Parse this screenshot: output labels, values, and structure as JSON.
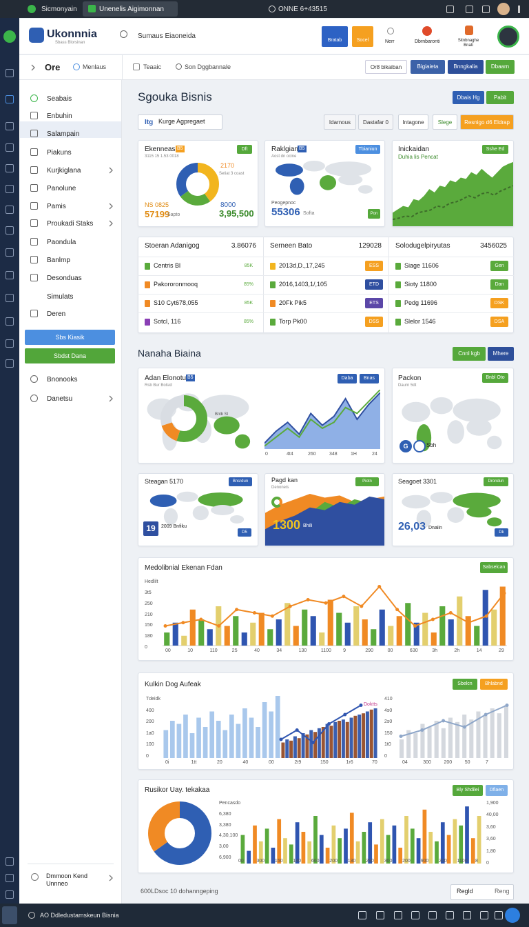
{
  "browser": {
    "tabs": [
      "Sicmonyain",
      "Unenelis Aigimonnan"
    ],
    "address": "ONNE 6+43515"
  },
  "header": {
    "logo": "Ukonnnia",
    "logo_sub": "Sbass Blorsinan",
    "search": "Sumaus Eiaoneida",
    "actions": [
      "Bratab",
      "Socel",
      "Nerr",
      "Dbrnbaronti",
      "Sitnbnaghe Bnati"
    ]
  },
  "toolbar": {
    "back": "Ore",
    "menu": "Menlaus",
    "tabs": [
      "Teaaic",
      "Son Dggbannale"
    ],
    "buttons": [
      "Or8 bikaiban",
      "Bigiaieta",
      "Bnngkalia",
      "Dbaarn"
    ]
  },
  "sidebar": {
    "items": [
      "Seabais",
      "Enbuhin",
      "Salampain",
      "Piakuns",
      "Kurjkiglana",
      "Panolune",
      "Pamis",
      "Proukadi Staks",
      "Paondula",
      "Banlmp",
      "Desonduas",
      "Simulats",
      "Deren"
    ],
    "active": [
      "Sbs Kiasik",
      "Sbdst Dana"
    ],
    "more": [
      "Bnonooks",
      "Danetsu"
    ],
    "footer": [
      "Dmmoon Kend",
      "Unnneo"
    ]
  },
  "page": {
    "title": "Sgouka Bisnis",
    "title_buttons": [
      "Dbais Hg",
      "Pabit"
    ],
    "search_tag": "Itg",
    "search": "Kurge Agpregaet",
    "filters": [
      "Idarnous",
      "Dastafar 0",
      "Intagone",
      "Slege",
      "Resnigo d6 Eldrap"
    ]
  },
  "kpis": [
    {
      "title": "Ekenneas",
      "badge": "Dft",
      "tag": "B5",
      "sub": "3115 15 1.53 0018",
      "labels": [
        "2170",
        "Setiat 3 coast"
      ],
      "donut": {
        "values": [
          40,
          25,
          35
        ],
        "colors": [
          "#f2b51e",
          "#5aaa3c",
          "#2f5fb3"
        ]
      },
      "stats": [
        "NS 0825",
        "8000"
      ],
      "big": [
        "57199",
        "3,95,500"
      ],
      "unit": "Sapto"
    },
    {
      "title": "Raklgians",
      "tag": "B5",
      "badge": "Tbianiun",
      "sub": "Aost dn ocine",
      "stat": "Peogepnoc",
      "big": "55306",
      "unit": "Softa",
      "chip": "Pon"
    },
    {
      "title": "Inickaidan",
      "sub": "Duhia lis Pencat",
      "badge": "Sshe Ed",
      "area": {
        "values": [
          20,
          25,
          30,
          28,
          40,
          38,
          45,
          55,
          50,
          60,
          58,
          68,
          65,
          72,
          70,
          80,
          76,
          85,
          78,
          72,
          80,
          88,
          92,
          95
        ],
        "color": "#5aaa3c",
        "ylim": [
          0,
          100
        ]
      },
      "trend": {
        "values": [
          10,
          12,
          15,
          14,
          20,
          22,
          24,
          30,
          28,
          34,
          36,
          40,
          45,
          42,
          48,
          50,
          46,
          52,
          56,
          60
        ],
        "color": "#3d6b2a",
        "ylim": [
          0,
          100
        ]
      }
    }
  ],
  "table": {
    "columns": [
      {
        "title": "Stoeran Adanigog",
        "total": "3.86076",
        "rows": [
          "Centris Bl",
          "Pakororonmooq",
          "S10 Cyt678,055",
          "Sotcl, 116"
        ],
        "badges": [
          "85K",
          "85%",
          "85K",
          "85%"
        ],
        "marker_colors": [
          "#5aaa3c",
          "#f08a24",
          "#f08a24",
          "#8a3fb5"
        ],
        "badge_colors": [
          "#ffffff",
          "#ffffff",
          "#ffffff",
          "#ffffff"
        ],
        "badge_text": "#5aaa3c"
      },
      {
        "title": "Serneen Bato",
        "total": "129028",
        "rows": [
          "2013d,D.,17,245",
          "2016,1403,1/,105",
          "20Fk Pik5",
          "Torp Pk00"
        ],
        "badges": [
          "ESS",
          "ETD",
          "ETS",
          "DSS"
        ],
        "marker_colors": [
          "#f2b51e",
          "#5aaa3c",
          "#f08a24",
          "#5aaa3c"
        ],
        "badge_colors": [
          "#f5a020",
          "#2f4fa0",
          "#5b47a8",
          "#f5a020"
        ],
        "badge_text": "#ffffff"
      },
      {
        "title": "Solodugelpiryutas",
        "total": "3456025",
        "rows": [
          "Siage 11606",
          "Sioty 11800",
          "Pedg 11696",
          "Slelor 1546"
        ],
        "badges": [
          "Gen",
          "Dan",
          "DSK",
          "DSA"
        ],
        "marker_colors": [
          "#5aaa3c",
          "#5aaa3c",
          "#5aaa3c",
          "#5aaa3c"
        ],
        "badge_colors": [
          "#5aaa3c",
          "#5aaa3c",
          "#f5a020",
          "#f5a020"
        ],
        "badge_text": "#ffffff"
      }
    ]
  },
  "section2": {
    "title": "Nanaha Biaina",
    "buttons": [
      "Cnnl kgb",
      "Mhere"
    ],
    "card_a": {
      "title": "Adan Elonotun",
      "tag": "B5",
      "sub": "Rsb Bur Bolsid",
      "buttons": [
        "Daba",
        "Bnas"
      ],
      "donut": {
        "values": [
          55,
          15,
          30
        ],
        "colors": [
          "#5aaa3c",
          "#f08a24",
          "#d9dde3"
        ]
      },
      "donut_label": "Bnlb Sl",
      "area": {
        "values": [
          10,
          30,
          45,
          25,
          60,
          40,
          55,
          85,
          50,
          75,
          95
        ],
        "color": "#2f4fa0",
        "ylim": [
          0,
          100
        ]
      },
      "area2": {
        "values": [
          5,
          20,
          35,
          20,
          50,
          35,
          45,
          70,
          60,
          80,
          100
        ],
        "color": "#5aaa3c",
        "ylim": [
          0,
          100
        ]
      },
      "x_labels": [
        "0",
        "4t4",
        "260",
        "348",
        "1H",
        "24"
      ]
    },
    "card_b": {
      "title": "Packon",
      "badge": "Bnbl Oto",
      "sub": "Daurn 5dt",
      "chip": "G",
      "label": "Sbh"
    },
    "small_cards": [
      {
        "title": "Steagan 5170",
        "badge": "Bnsrdun",
        "num": "19",
        "label": "2009 Bnfiku",
        "chip": "D5"
      },
      {
        "title": "Pagd kan",
        "sub": "Denoneis",
        "badge": "Piotn",
        "big": "1300",
        "label": "Bhili",
        "area": {
          "values": [
            30,
            45,
            55,
            70,
            65,
            80,
            75,
            90,
            85
          ],
          "color": "#2f4fa0",
          "ylim": [
            0,
            100
          ]
        },
        "area2": {
          "values": [
            10,
            25,
            40,
            60,
            80,
            70,
            85,
            78,
            82
          ],
          "color": "#5aaa3c",
          "ylim": [
            0,
            100
          ]
        },
        "area3": {
          "values": [
            60,
            75,
            85,
            95,
            88,
            92,
            80,
            85,
            90
          ],
          "color": "#f08a24",
          "ylim": [
            0,
            100
          ]
        }
      },
      {
        "title": "Seagoet 3301",
        "badge": "Drondun",
        "big": "26,03",
        "label": "Dnaiin",
        "chip": "Dk"
      }
    ]
  },
  "chart1": {
    "title": "Medolibnial Ekenan Fdan",
    "button": "Sabselcan",
    "ylim": [
      0,
      100
    ],
    "values": [
      20,
      35,
      15,
      55,
      40,
      25,
      60,
      30,
      45,
      20,
      35,
      50,
      25,
      40,
      65,
      30,
      55,
      45,
      20,
      70,
      50,
      35,
      60,
      40,
      25,
      55,
      30,
      45,
      65,
      35,
      50,
      20,
      60,
      40,
      75,
      45,
      30,
      85,
      55,
      90
    ],
    "colors": [
      "#5aaa3c",
      "#2f55b0",
      "#e3cf6e",
      "#f08a24"
    ],
    "line": {
      "values": [
        30,
        35,
        40,
        30,
        55,
        50,
        45,
        60,
        70,
        65,
        75,
        60,
        90,
        55,
        30,
        40,
        50,
        35,
        45,
        80
      ],
      "color": "#f08a24",
      "ylim": [
        0,
        100
      ]
    },
    "y_labels": [
      "Hedlilt",
      "3t5",
      "250",
      "210",
      "150",
      "180",
      "0"
    ],
    "x_labels": [
      "00",
      "10",
      "110",
      "25",
      "40",
      "34",
      "130",
      "1100",
      "9",
      "290",
      "00",
      "630",
      "3h",
      "2h",
      "14",
      "29"
    ]
  },
  "chart2": {
    "title": "Kulkin Dog Aufeak",
    "buttons": [
      "Sbelcn",
      "Bhlabnd"
    ],
    "label": "Doktts",
    "bars_a": {
      "values": [
        45,
        60,
        55,
        70,
        40,
        65,
        50,
        75,
        60,
        45,
        70,
        55,
        80,
        65,
        50,
        90,
        75,
        100
      ],
      "colors": [
        "#a9c8ec"
      ],
      "ylim": [
        0,
        110
      ]
    },
    "bars_b": {
      "values": [
        25,
        30,
        28,
        35,
        32,
        40,
        38,
        45,
        42,
        48,
        50,
        55,
        52,
        58,
        60,
        62,
        58,
        65,
        68,
        70,
        72,
        75,
        78,
        80
      ],
      "colors": [
        "#9a5532",
        "#3a5fb0"
      ],
      "ylim": [
        0,
        110
      ]
    },
    "line": {
      "values": [
        30,
        45,
        25,
        55,
        70,
        85
      ],
      "color": "#2f55b0",
      "ylim": [
        0,
        110
      ]
    },
    "bars_c": {
      "values": [
        30,
        45,
        40,
        55,
        50,
        60,
        48,
        65,
        58,
        70,
        62,
        75,
        68,
        80,
        72,
        85
      ],
      "colors": [
        "#d4d8de"
      ],
      "ylim": [
        0,
        110
      ]
    },
    "line_c": {
      "values": [
        35,
        45,
        60,
        50,
        70,
        85
      ],
      "color": "#8fa7c9",
      "ylim": [
        0,
        110
      ]
    },
    "y_labels": [
      "Tdeidk",
      "400",
      "200",
      "1a0",
      "100",
      "0"
    ],
    "y_labels_right": [
      "410",
      "4s0",
      "2s0",
      "150",
      "1t0",
      "0"
    ],
    "x_labels": [
      "0i",
      "1tt",
      "20",
      "40",
      "00",
      "2t9",
      "150",
      "1r6",
      "70"
    ],
    "x_labels_right": [
      "04",
      "300",
      "200",
      "50",
      "7"
    ]
  },
  "chart3": {
    "title": "Rusikor Uay. tekakaa",
    "buttons": [
      "Bly Shdilei",
      "Dfiaen"
    ],
    "donut": {
      "values": [
        65,
        35
      ],
      "colors": [
        "#2f5fb3",
        "#f08a24"
      ]
    },
    "bars": {
      "values": [
        45,
        20,
        60,
        35,
        55,
        25,
        70,
        40,
        30,
        65,
        50,
        35,
        75,
        45,
        25,
        60,
        40,
        55,
        80,
        35,
        50,
        65,
        30,
        70,
        45,
        60,
        25,
        75,
        55,
        40,
        85,
        50,
        35,
        65,
        45,
        70,
        60,
        90,
        40,
        75
      ],
      "colors": [
        "#5aaa3c",
        "#2f55b0",
        "#f08a24",
        "#e3cf6e"
      ],
      "ylim": [
        0,
        100
      ]
    },
    "y_labels": [
      "Pencasdo",
      "6,380",
      "3,380",
      "4,30,100",
      "3,00",
      "6,900"
    ],
    "y_labels_right": [
      "1,900",
      "40,00",
      "3,60",
      "3,60",
      "1,80",
      "0"
    ],
    "x_labels": [
      "00",
      "300",
      "150",
      "140",
      "660",
      "200",
      "130",
      "290",
      "300",
      "200",
      "900",
      "200",
      "1100",
      "8"
    ]
  },
  "footer": {
    "text": "600LDsoc 10 dohanngeping",
    "buttons": [
      "Regld",
      "Reng"
    ]
  },
  "taskbar": {
    "text": "AO Ddledustamskeun Bisnia"
  }
}
